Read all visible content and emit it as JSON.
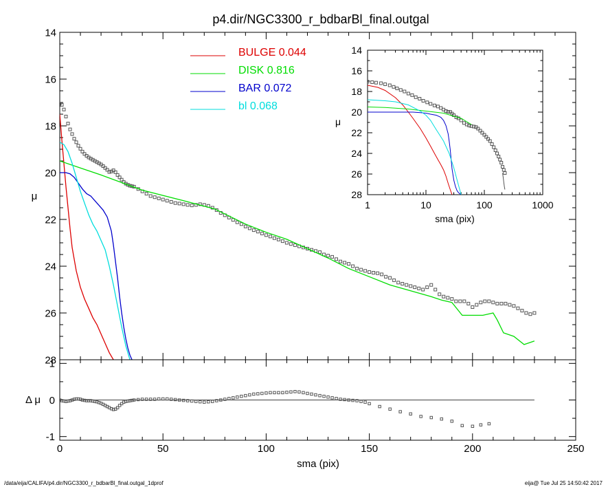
{
  "title": "p4.dir/NGC3300_r_bdbarBl_final.outgal",
  "footer": {
    "left": "/data/eija/CALIFA/p4.dir/NGC3300_r_bdbarBl_final.outgal_1dprof",
    "right": "eija@  Tue Jul 25 14:50:42 2017"
  },
  "colors": {
    "bulge": "#dd0000",
    "disk": "#00dd00",
    "bar": "#0000cc",
    "bl": "#00dddd",
    "data": "#555555"
  },
  "chart_data": [
    {
      "id": "main",
      "type": "line",
      "ylabel": "μ",
      "xlim": [
        0,
        250
      ],
      "ylim": [
        28,
        14
      ],
      "xticks": [
        "0",
        "50",
        "100",
        "150",
        "200",
        "250"
      ],
      "yticks": [
        "14",
        "16",
        "18",
        "20",
        "22",
        "24",
        "26",
        "28"
      ],
      "legend": [
        {
          "name": "BULGE",
          "value": "0.044",
          "color": "#dd0000"
        },
        {
          "name": "DISK",
          "value": "0.816",
          "color": "#00dd00"
        },
        {
          "name": "BAR",
          "value": "0.072",
          "color": "#0000cc"
        },
        {
          "name": "bl",
          "value": "0.068",
          "color": "#00dddd"
        }
      ],
      "series": [
        {
          "name": "BULGE",
          "color": "#dd0000",
          "x": [
            0,
            1,
            2,
            3,
            4,
            5,
            6,
            8,
            10,
            12,
            14,
            16,
            18,
            20,
            22,
            24,
            26
          ],
          "y": [
            17.5,
            18.6,
            19.6,
            20.6,
            21.5,
            22.4,
            23.2,
            24.2,
            24.9,
            25.4,
            25.8,
            26.2,
            26.5,
            26.9,
            27.3,
            27.7,
            28.0
          ]
        },
        {
          "name": "DISK",
          "color": "#00dd00",
          "x": [
            0,
            20,
            40,
            60,
            75,
            90,
            100,
            110,
            120,
            130,
            140,
            150,
            160,
            170,
            180,
            185,
            190,
            195,
            200,
            205,
            210,
            212,
            215,
            220,
            225,
            230
          ],
          "y": [
            19.5,
            20.1,
            20.75,
            21.2,
            21.55,
            22.2,
            22.55,
            22.85,
            23.25,
            23.65,
            24.1,
            24.45,
            24.8,
            25.05,
            25.3,
            25.45,
            25.55,
            26.1,
            26.1,
            26.1,
            26.0,
            26.3,
            26.85,
            27.0,
            27.35,
            27.2
          ]
        },
        {
          "name": "BAR",
          "color": "#0000cc",
          "x": [
            0,
            3,
            5,
            7,
            9,
            11,
            13,
            15,
            17,
            19,
            21,
            23,
            25,
            26,
            27,
            28,
            29,
            30,
            31,
            32,
            33,
            34,
            35
          ],
          "y": [
            20.0,
            20.0,
            20.05,
            20.2,
            20.45,
            20.7,
            20.9,
            21.0,
            21.2,
            21.4,
            21.6,
            21.9,
            22.5,
            23.1,
            23.8,
            24.5,
            25.3,
            26.0,
            26.6,
            27.1,
            27.5,
            27.8,
            28.0
          ]
        },
        {
          "name": "bl",
          "color": "#00dddd",
          "x": [
            0,
            2,
            4,
            6,
            8,
            10,
            12,
            14,
            16,
            18,
            20,
            22,
            24,
            26,
            28,
            30,
            32,
            34
          ],
          "y": [
            18.7,
            18.8,
            19.1,
            19.6,
            20.2,
            20.8,
            21.3,
            21.8,
            22.2,
            22.5,
            22.9,
            23.3,
            24.0,
            24.8,
            25.7,
            26.6,
            27.4,
            28.0
          ]
        }
      ],
      "data_points": {
        "name": "data",
        "marker": "square",
        "x": [
          0,
          1,
          2,
          3,
          4,
          5,
          6,
          7,
          8,
          9,
          10,
          11,
          12,
          13,
          14,
          15,
          16,
          17,
          18,
          19,
          20,
          21,
          22,
          23,
          24,
          25,
          26,
          27,
          28,
          29,
          30,
          31,
          32,
          33,
          34,
          35,
          36,
          38,
          40,
          42,
          44,
          46,
          48,
          50,
          52,
          54,
          56,
          58,
          60,
          62,
          64,
          66,
          68,
          70,
          72,
          74,
          76,
          78,
          80,
          82,
          84,
          86,
          88,
          90,
          92,
          94,
          96,
          98,
          100,
          102,
          104,
          106,
          108,
          110,
          112,
          114,
          116,
          118,
          120,
          122,
          124,
          126,
          128,
          130,
          132,
          134,
          136,
          138,
          140,
          142,
          144,
          146,
          148,
          150,
          152,
          154,
          156,
          158,
          160,
          162,
          164,
          166,
          168,
          170,
          172,
          174,
          176,
          178,
          180,
          182,
          184,
          186,
          188,
          190,
          192,
          194,
          196,
          198,
          200,
          202,
          204,
          206,
          208,
          210,
          212,
          214,
          216,
          218,
          220,
          222,
          224,
          226,
          228,
          230
        ],
        "y": [
          17.05,
          17.1,
          17.3,
          17.6,
          17.9,
          18.15,
          18.35,
          18.55,
          18.7,
          18.85,
          18.98,
          19.1,
          19.2,
          19.28,
          19.35,
          19.4,
          19.45,
          19.5,
          19.55,
          19.6,
          19.65,
          19.72,
          19.8,
          19.88,
          19.97,
          19.95,
          19.9,
          19.98,
          20.1,
          20.2,
          20.3,
          20.4,
          20.47,
          20.52,
          20.56,
          20.58,
          20.6,
          20.7,
          20.8,
          20.9,
          21.0,
          21.05,
          21.1,
          21.15,
          21.2,
          21.25,
          21.3,
          21.32,
          21.35,
          21.38,
          21.4,
          21.38,
          21.35,
          21.38,
          21.42,
          21.5,
          21.6,
          21.72,
          21.82,
          21.92,
          22.02,
          22.12,
          22.2,
          22.3,
          22.38,
          22.46,
          22.52,
          22.6,
          22.67,
          22.73,
          22.8,
          22.86,
          22.93,
          23.0,
          23.05,
          23.1,
          23.15,
          23.2,
          23.25,
          23.3,
          23.35,
          23.4,
          23.5,
          23.55,
          23.6,
          23.7,
          23.8,
          23.85,
          23.9,
          24.0,
          24.1,
          24.15,
          24.2,
          24.25,
          24.28,
          24.3,
          24.35,
          24.45,
          24.5,
          24.6,
          24.7,
          24.75,
          24.8,
          24.85,
          24.9,
          24.95,
          25.0,
          24.9,
          24.8,
          25.0,
          25.2,
          25.3,
          25.35,
          25.4,
          25.5,
          25.5,
          25.5,
          25.6,
          25.75,
          25.65,
          25.55,
          25.5,
          25.5,
          25.55,
          25.6,
          25.6,
          25.6,
          25.65,
          25.7,
          25.8,
          25.9,
          26.0,
          26.05,
          26.0
        ]
      }
    },
    {
      "id": "inset",
      "type": "line",
      "xscale": "log",
      "xlabel": "sma (pix)",
      "ylabel": "μ",
      "xlim": [
        1,
        1000
      ],
      "ylim": [
        28,
        14
      ],
      "xticks": [
        "1",
        "10",
        "100",
        "1000"
      ],
      "yticks": [
        "14",
        "16",
        "18",
        "20",
        "22",
        "24",
        "26",
        "28"
      ],
      "series": [
        {
          "name": "BULGE",
          "color": "#dd0000",
          "x": [
            1,
            1.5,
            2,
            3,
            4,
            5,
            6,
            8,
            10,
            12,
            14,
            16,
            18,
            20,
            22,
            24,
            26,
            28
          ],
          "y": [
            17.4,
            17.6,
            17.9,
            18.6,
            19.3,
            20.0,
            20.6,
            21.6,
            22.5,
            23.3,
            24.0,
            24.6,
            25.1,
            25.6,
            26.2,
            26.9,
            27.5,
            28.0
          ]
        },
        {
          "name": "DISK",
          "color": "#00dd00",
          "x": [
            1,
            2,
            5,
            10,
            20,
            30,
            40,
            60
          ],
          "y": [
            19.5,
            19.55,
            19.7,
            19.9,
            20.1,
            20.4,
            20.6,
            21.2
          ]
        },
        {
          "name": "BAR",
          "color": "#0000cc",
          "x": [
            1,
            2,
            4,
            6,
            8,
            10,
            12,
            15,
            18,
            20,
            22,
            24,
            25,
            26,
            27,
            28,
            30,
            32,
            34,
            36,
            40
          ],
          "y": [
            20.0,
            20.0,
            20.0,
            20.0,
            20.05,
            20.1,
            20.2,
            20.3,
            20.5,
            20.8,
            21.3,
            22.1,
            22.8,
            23.6,
            24.6,
            25.5,
            26.6,
            27.2,
            27.6,
            27.8,
            28.0
          ]
        },
        {
          "name": "bl",
          "color": "#00dddd",
          "x": [
            1,
            2,
            3,
            5,
            8,
            10,
            12,
            15,
            20,
            25,
            30,
            35,
            40
          ],
          "y": [
            18.8,
            18.9,
            19.0,
            19.3,
            19.9,
            20.3,
            20.8,
            21.7,
            22.8,
            24.0,
            25.4,
            26.8,
            28.0
          ]
        }
      ],
      "data_points": {
        "name": "data",
        "marker": "square",
        "x": [
          1,
          1.2,
          1.4,
          1.7,
          2,
          2.4,
          2.8,
          3.2,
          3.7,
          4.3,
          5,
          5.8,
          6.7,
          7.8,
          9,
          10.5,
          12,
          14,
          16,
          18,
          20,
          22,
          24,
          26,
          28,
          30,
          33,
          36,
          40,
          45,
          50,
          55,
          60,
          66,
          72,
          78,
          85,
          92,
          100,
          108,
          116,
          125,
          135,
          145,
          155,
          165,
          175,
          185,
          195,
          205,
          215,
          225
        ],
        "y": [
          17.05,
          17.1,
          17.15,
          17.2,
          17.3,
          17.4,
          17.55,
          17.7,
          17.85,
          18.0,
          18.2,
          18.35,
          18.55,
          18.7,
          18.9,
          19.05,
          19.2,
          19.35,
          19.45,
          19.6,
          19.75,
          19.9,
          19.97,
          19.98,
          20.15,
          20.3,
          20.5,
          20.6,
          20.8,
          21.05,
          21.2,
          21.3,
          21.35,
          21.4,
          21.45,
          21.6,
          21.8,
          22.0,
          22.2,
          22.4,
          22.6,
          22.8,
          23.1,
          23.4,
          23.7,
          24.0,
          24.3,
          24.6,
          24.9,
          25.3,
          25.6,
          25.9
        ]
      },
      "tail": {
        "x": [
          205,
          210,
          215,
          220,
          225
        ],
        "y": [
          25.9,
          26.3,
          26.8,
          27.2,
          27.5
        ]
      }
    },
    {
      "id": "residual",
      "type": "scatter",
      "xlabel": "sma (pix)",
      "ylabel": "Δ μ",
      "xlim": [
        0,
        250
      ],
      "ylim": [
        -1.1,
        1.1
      ],
      "xticks": [
        "0",
        "50",
        "100",
        "150",
        "200",
        "250"
      ],
      "yticks": [
        "1",
        "0",
        "-1"
      ],
      "zero_line": {
        "x": [
          0,
          230
        ],
        "y": 0
      },
      "data_points": {
        "name": "residual",
        "marker": "square",
        "x": [
          0,
          1,
          2,
          3,
          4,
          5,
          6,
          7,
          8,
          9,
          10,
          11,
          12,
          13,
          14,
          15,
          16,
          17,
          18,
          19,
          20,
          21,
          22,
          23,
          24,
          25,
          26,
          27,
          28,
          29,
          30,
          31,
          32,
          33,
          34,
          35,
          36,
          38,
          40,
          42,
          44,
          46,
          48,
          50,
          52,
          54,
          56,
          58,
          60,
          62,
          64,
          66,
          68,
          70,
          72,
          74,
          76,
          78,
          80,
          82,
          84,
          86,
          88,
          90,
          92,
          94,
          96,
          98,
          100,
          102,
          104,
          106,
          108,
          110,
          112,
          114,
          116,
          118,
          120,
          122,
          124,
          126,
          128,
          130,
          132,
          134,
          136,
          138,
          140,
          142,
          144,
          146,
          148,
          150,
          155,
          160,
          165,
          170,
          175,
          180,
          185,
          190,
          195,
          200,
          204,
          208
        ],
        "y": [
          0.0,
          -0.02,
          -0.03,
          -0.04,
          -0.03,
          -0.02,
          0.0,
          0.02,
          0.03,
          0.03,
          0.02,
          0.0,
          -0.01,
          -0.02,
          -0.02,
          -0.02,
          -0.03,
          -0.04,
          -0.05,
          -0.07,
          -0.09,
          -0.12,
          -0.15,
          -0.18,
          -0.21,
          -0.24,
          -0.26,
          -0.25,
          -0.21,
          -0.15,
          -0.1,
          -0.06,
          -0.04,
          -0.03,
          -0.02,
          -0.01,
          0.0,
          0.01,
          0.02,
          0.02,
          0.02,
          0.02,
          0.03,
          0.03,
          0.03,
          0.02,
          0.01,
          0.0,
          -0.01,
          -0.02,
          -0.03,
          -0.04,
          -0.05,
          -0.06,
          -0.05,
          -0.04,
          -0.02,
          0.0,
          0.02,
          0.04,
          0.06,
          0.08,
          0.1,
          0.12,
          0.14,
          0.16,
          0.17,
          0.18,
          0.19,
          0.2,
          0.2,
          0.2,
          0.2,
          0.21,
          0.22,
          0.23,
          0.22,
          0.2,
          0.18,
          0.16,
          0.14,
          0.12,
          0.1,
          0.08,
          0.06,
          0.04,
          0.02,
          0.01,
          0.0,
          -0.01,
          -0.02,
          -0.04,
          -0.06,
          -0.1,
          -0.18,
          -0.25,
          -0.32,
          -0.38,
          -0.45,
          -0.48,
          -0.52,
          -0.58,
          -0.7,
          -0.72,
          -0.68,
          -0.65
        ]
      }
    }
  ]
}
